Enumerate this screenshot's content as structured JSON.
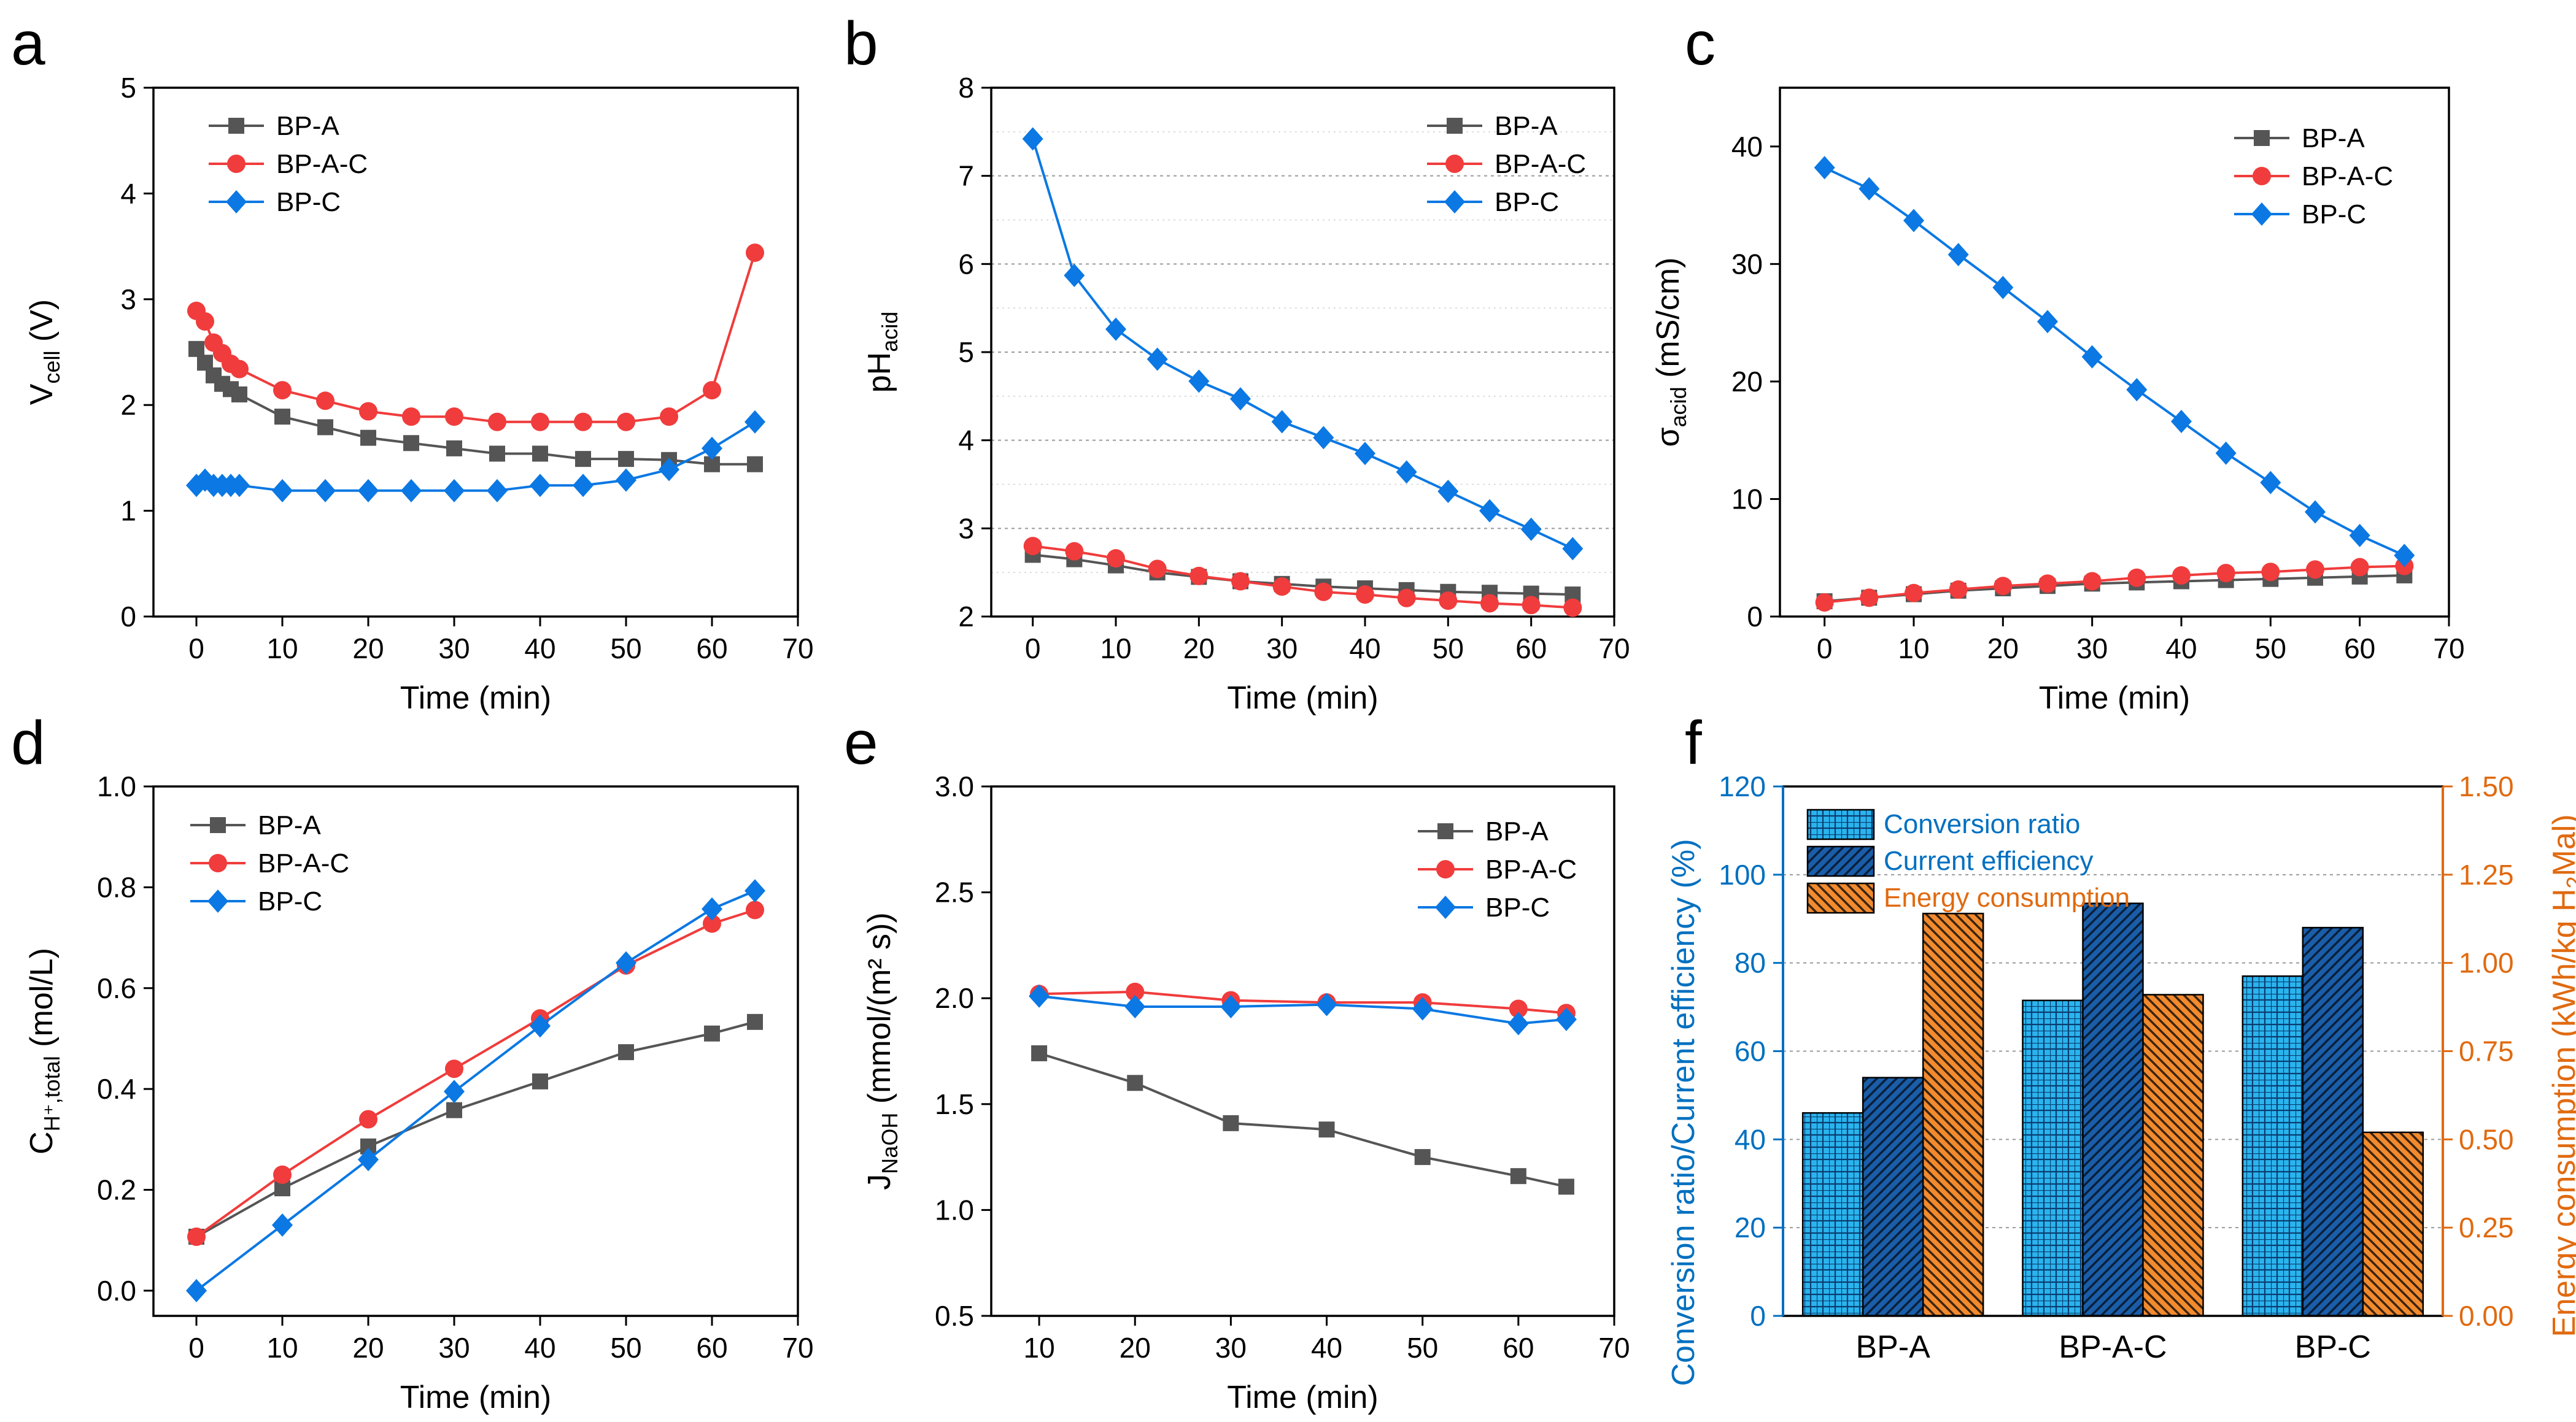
{
  "colors": {
    "BP-A": "#555555",
    "BP-A-C": "#f03c3c",
    "BP-C": "#0b78e3",
    "conv": "#2ab4ee",
    "curr": "#1a5da8",
    "energy": "#f28a2e",
    "left_axis_f": "#0070c0",
    "right_axis_f": "#e06a10"
  },
  "chart_data": [
    {
      "id": "a",
      "type": "line",
      "letter": "a",
      "xlabel": "Time (min)",
      "xlim": [
        -5,
        70
      ],
      "xticks": [
        0,
        10,
        20,
        30,
        40,
        50,
        60,
        70
      ],
      "ylabel": "V",
      "ylabel_sub": "cell",
      "ylabel_tail": " (V)",
      "ylim": [
        0,
        5
      ],
      "yticks": [
        0,
        1,
        2,
        3,
        4,
        5
      ],
      "grid": false,
      "legend": "top-left",
      "series": [
        {
          "name": "BP-A",
          "marker": "square",
          "x": [
            0,
            1,
            2,
            3,
            4,
            5,
            10,
            15,
            20,
            25,
            30,
            35,
            40,
            45,
            50,
            55,
            60,
            65
          ],
          "y": [
            2.53,
            2.4,
            2.28,
            2.2,
            2.15,
            2.1,
            1.89,
            1.79,
            1.69,
            1.64,
            1.59,
            1.54,
            1.54,
            1.49,
            1.49,
            1.48,
            1.44,
            1.44
          ]
        },
        {
          "name": "BP-A-C",
          "marker": "circle",
          "x": [
            0,
            1,
            2,
            3,
            4,
            5,
            10,
            15,
            20,
            25,
            30,
            35,
            40,
            45,
            50,
            55,
            60,
            65
          ],
          "y": [
            2.89,
            2.79,
            2.59,
            2.49,
            2.39,
            2.34,
            2.14,
            2.04,
            1.94,
            1.89,
            1.89,
            1.84,
            1.84,
            1.84,
            1.84,
            1.89,
            2.14,
            3.44
          ]
        },
        {
          "name": "BP-C",
          "marker": "diamond",
          "x": [
            0,
            1,
            2,
            3,
            4,
            5,
            10,
            15,
            20,
            25,
            30,
            35,
            40,
            45,
            50,
            55,
            60,
            65
          ],
          "y": [
            1.24,
            1.29,
            1.24,
            1.24,
            1.24,
            1.24,
            1.19,
            1.19,
            1.19,
            1.19,
            1.19,
            1.19,
            1.24,
            1.24,
            1.29,
            1.39,
            1.59,
            1.84
          ]
        }
      ]
    },
    {
      "id": "b",
      "type": "line",
      "letter": "b",
      "xlabel": "Time (min)",
      "xlim": [
        -5,
        70
      ],
      "xticks": [
        0,
        10,
        20,
        30,
        40,
        50,
        60,
        70
      ],
      "ylabel": "pH",
      "ylabel_sub": "acid",
      "ylabel_tail": "",
      "ylim": [
        2,
        8
      ],
      "yticks": [
        2,
        3,
        4,
        5,
        6,
        7,
        8
      ],
      "grid": true,
      "legend": "top-right",
      "series": [
        {
          "name": "BP-A",
          "marker": "square",
          "x": [
            0,
            5,
            10,
            15,
            20,
            25,
            30,
            35,
            40,
            45,
            50,
            55,
            60,
            65
          ],
          "y": [
            2.7,
            2.65,
            2.58,
            2.5,
            2.45,
            2.4,
            2.37,
            2.34,
            2.32,
            2.3,
            2.28,
            2.27,
            2.26,
            2.25
          ]
        },
        {
          "name": "BP-A-C",
          "marker": "circle",
          "x": [
            0,
            5,
            10,
            15,
            20,
            25,
            30,
            35,
            40,
            45,
            50,
            55,
            60,
            65
          ],
          "y": [
            2.8,
            2.74,
            2.66,
            2.54,
            2.46,
            2.4,
            2.34,
            2.28,
            2.25,
            2.21,
            2.18,
            2.15,
            2.13,
            2.1
          ]
        },
        {
          "name": "BP-C",
          "marker": "diamond",
          "x": [
            0,
            5,
            10,
            15,
            20,
            25,
            30,
            35,
            40,
            45,
            50,
            55,
            60,
            65
          ],
          "y": [
            7.42,
            5.87,
            5.26,
            4.92,
            4.67,
            4.47,
            4.21,
            4.03,
            3.85,
            3.64,
            3.42,
            3.2,
            2.99,
            2.77
          ]
        }
      ]
    },
    {
      "id": "c",
      "type": "line",
      "letter": "c",
      "xlabel": "Time (min)",
      "xlim": [
        -5,
        70
      ],
      "xticks": [
        0,
        10,
        20,
        30,
        40,
        50,
        60,
        70
      ],
      "ylabel": "σ",
      "ylabel_sub": "acid",
      "ylabel_tail": " (mS/cm)",
      "ylim": [
        0,
        45
      ],
      "yticks": [
        0,
        10,
        20,
        30,
        40
      ],
      "grid": false,
      "legend": "top-right",
      "series": [
        {
          "name": "BP-A",
          "marker": "square",
          "x": [
            0,
            5,
            10,
            15,
            20,
            25,
            30,
            35,
            40,
            45,
            50,
            55,
            60,
            65
          ],
          "y": [
            1.3,
            1.6,
            1.9,
            2.2,
            2.4,
            2.6,
            2.8,
            2.9,
            3.0,
            3.1,
            3.2,
            3.3,
            3.4,
            3.5
          ]
        },
        {
          "name": "BP-A-C",
          "marker": "circle",
          "x": [
            0,
            5,
            10,
            15,
            20,
            25,
            30,
            35,
            40,
            45,
            50,
            55,
            60,
            65
          ],
          "y": [
            1.2,
            1.6,
            2.0,
            2.3,
            2.6,
            2.8,
            3.0,
            3.3,
            3.5,
            3.7,
            3.8,
            4.0,
            4.2,
            4.3
          ]
        },
        {
          "name": "BP-C",
          "marker": "diamond",
          "x": [
            0,
            5,
            10,
            15,
            20,
            25,
            30,
            35,
            40,
            45,
            50,
            55,
            60,
            65
          ],
          "y": [
            38.2,
            36.4,
            33.7,
            30.8,
            28.0,
            25.1,
            22.1,
            19.3,
            16.6,
            13.9,
            11.4,
            8.9,
            6.9,
            5.2
          ]
        }
      ]
    },
    {
      "id": "d",
      "type": "line",
      "letter": "d",
      "xlabel": "Time (min)",
      "xlim": [
        -5,
        70
      ],
      "xticks": [
        0,
        10,
        20,
        30,
        40,
        50,
        60,
        70
      ],
      "ylabel": "C",
      "ylabel_sub": "H⁺,total",
      "ylabel_tail": " (mol/L)",
      "ylim": [
        -0.05,
        1.0
      ],
      "yticks": [
        0.0,
        0.2,
        0.4,
        0.6,
        0.8,
        1.0
      ],
      "yfmt": 1,
      "grid": false,
      "legend": "top-left",
      "series": [
        {
          "name": "BP-A",
          "marker": "square",
          "x": [
            0,
            10,
            20,
            30,
            40,
            50,
            60,
            65
          ],
          "y": [
            0.107,
            0.203,
            0.286,
            0.358,
            0.415,
            0.473,
            0.51,
            0.533
          ]
        },
        {
          "name": "BP-A-C",
          "marker": "circle",
          "x": [
            0,
            10,
            20,
            30,
            40,
            50,
            60,
            65
          ],
          "y": [
            0.107,
            0.23,
            0.34,
            0.44,
            0.54,
            0.645,
            0.728,
            0.755
          ]
        },
        {
          "name": "BP-C",
          "marker": "diamond",
          "x": [
            0,
            10,
            20,
            30,
            40,
            50,
            60,
            65
          ],
          "y": [
            0.0,
            0.13,
            0.26,
            0.395,
            0.525,
            0.65,
            0.757,
            0.793
          ]
        }
      ]
    },
    {
      "id": "e",
      "type": "line",
      "letter": "e",
      "xlabel": "Time (min)",
      "xlim": [
        5,
        70
      ],
      "xticks": [
        10,
        20,
        30,
        40,
        50,
        60,
        70
      ],
      "ylabel": "J",
      "ylabel_sub": "NaOH",
      "ylabel_tail": " (mmol/(m² s))",
      "ylim": [
        0.5,
        3.0
      ],
      "yticks": [
        0.5,
        1.0,
        1.5,
        2.0,
        2.5,
        3.0
      ],
      "yfmt": 1,
      "grid": false,
      "legend": "top-right",
      "series": [
        {
          "name": "BP-A",
          "marker": "square",
          "x": [
            10,
            20,
            30,
            40,
            50,
            60,
            65
          ],
          "y": [
            1.74,
            1.6,
            1.41,
            1.38,
            1.25,
            1.16,
            1.11
          ]
        },
        {
          "name": "BP-A-C",
          "marker": "circle",
          "x": [
            10,
            20,
            30,
            40,
            50,
            60,
            65
          ],
          "y": [
            2.02,
            2.03,
            1.99,
            1.98,
            1.98,
            1.95,
            1.93
          ]
        },
        {
          "name": "BP-C",
          "marker": "diamond",
          "x": [
            10,
            20,
            30,
            40,
            50,
            60,
            65
          ],
          "y": [
            2.01,
            1.96,
            1.96,
            1.97,
            1.95,
            1.88,
            1.9
          ]
        }
      ]
    },
    {
      "id": "f",
      "type": "bar",
      "letter": "f",
      "categories": [
        "BP-A",
        "BP-A-C",
        "BP-C"
      ],
      "ylabel": "Conversion ratio/Current efficiency (%)",
      "ylim": [
        0,
        120
      ],
      "yticks": [
        0,
        20,
        40,
        60,
        80,
        100,
        120
      ],
      "y2label": "Energy consumption (kWh/kg H",
      "y2label_sub": "2",
      "y2label_tail": "Mal)",
      "y2lim": [
        0,
        1.5
      ],
      "y2ticks": [
        0.0,
        0.25,
        0.5,
        0.75,
        1.0,
        1.25,
        1.5
      ],
      "grid": true,
      "legend": "top-left",
      "series": [
        {
          "name": "Conversion ratio",
          "axis": "left",
          "values": [
            46,
            71.5,
            77
          ]
        },
        {
          "name": "Current efficiency",
          "axis": "left",
          "values": [
            54,
            93.5,
            88
          ]
        },
        {
          "name": "Energy consumption",
          "axis": "right",
          "values": [
            1.14,
            0.91,
            0.52
          ]
        }
      ]
    }
  ]
}
